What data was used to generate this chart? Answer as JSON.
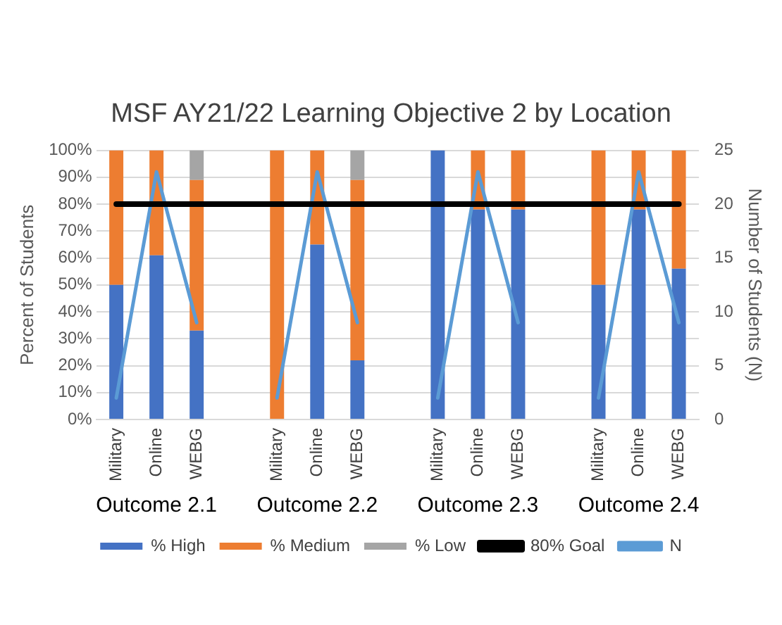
{
  "chart_data": {
    "type": "bar",
    "title": "MSF AY21/22 Learning Objective 2 by Location",
    "ylabel": "Percent of Students",
    "y2label": "Number of Students (N)",
    "categories": [
      "Military",
      "Online",
      "WEBG",
      null,
      "Military",
      "Online",
      "WEBG",
      null,
      "Military",
      "Online",
      "WEBG",
      null,
      "Military",
      "Online",
      "WEBG"
    ],
    "stacked": true,
    "series": [
      {
        "name": "% High",
        "color": "#4472c4",
        "values": [
          50,
          61,
          33,
          null,
          0,
          65,
          22,
          null,
          100,
          78,
          78,
          null,
          50,
          78,
          56
        ]
      },
      {
        "name": "% Medium",
        "color": "#ed7d31",
        "values": [
          50,
          39,
          56,
          null,
          100,
          35,
          67,
          null,
          0,
          22,
          22,
          null,
          50,
          22,
          44
        ]
      },
      {
        "name": "% Low",
        "color": "#a5a5a5",
        "values": [
          0,
          0,
          11,
          null,
          0,
          0,
          11,
          null,
          0,
          0,
          0,
          null,
          0,
          0,
          0
        ]
      },
      {
        "name": "80% Goal",
        "type": "line",
        "color": "#000000",
        "values": [
          80,
          80,
          80,
          80,
          80,
          80,
          80,
          80,
          80,
          80,
          80,
          80,
          80,
          80,
          80
        ]
      },
      {
        "name": "N",
        "type": "line",
        "axis": "y2",
        "color": "#5b9bd5",
        "values": [
          2,
          23,
          9,
          null,
          2,
          23,
          9,
          null,
          2,
          23,
          9,
          null,
          2,
          23,
          9
        ]
      }
    ],
    "ylim": [
      0,
      100
    ],
    "yticks": [
      {
        "value": 0,
        "label": "0%"
      },
      {
        "value": 10,
        "label": "10%"
      },
      {
        "value": 20,
        "label": "20%"
      },
      {
        "value": 30,
        "label": "30%"
      },
      {
        "value": 40,
        "label": "40%"
      },
      {
        "value": 50,
        "label": "50%"
      },
      {
        "value": 60,
        "label": "60%"
      },
      {
        "value": 70,
        "label": "70%"
      },
      {
        "value": 80,
        "label": "80%"
      },
      {
        "value": 90,
        "label": "90%"
      },
      {
        "value": 100,
        "label": "100%"
      }
    ],
    "y2lim": [
      0,
      25
    ],
    "y2ticks": [
      0,
      5,
      10,
      15,
      20,
      25
    ],
    "annotations": [
      "Outcome 2.1",
      "Outcome 2.2",
      "Outcome 2.3",
      "Outcome 2.4"
    ],
    "grid": "y",
    "legend": "bottom",
    "marker": "none"
  }
}
